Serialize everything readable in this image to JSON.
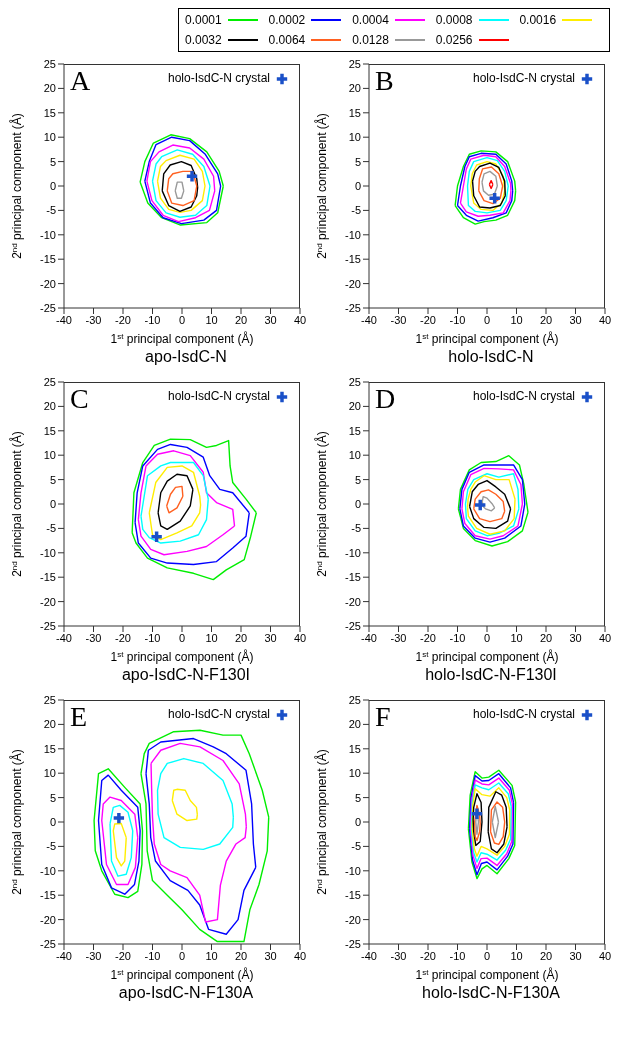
{
  "chart_data": [
    {
      "type": "line",
      "title": "apo-IsdC-N",
      "annotations": [
        "A"
      ],
      "xlabel": "1$^{st}$ principal component (Å)",
      "ylabel": "2$^{nd}$ principal component (Å)",
      "xlim": [
        -40,
        40
      ],
      "xticks": [
        -40,
        -30,
        -20,
        -10,
        0,
        10,
        20,
        30,
        40
      ],
      "ylim": [
        -25,
        25
      ],
      "yticks": [
        -25,
        -20,
        -15,
        -10,
        -5,
        0,
        5,
        10,
        15,
        20,
        25
      ],
      "legend": "top right",
      "series": [
        {
          "color": "#00ee00",
          "x": [
            -14.2,
            -12.6,
            -9.7,
            -3.8,
            2.6,
            8.4,
            12.6,
            14,
            null,
            -14.2,
            -11.6,
            -6.9,
            -0.5,
            8.4,
            12.1,
            14
          ],
          "values": [
            0.8,
            5,
            8.8,
            10.5,
            9.7,
            7,
            3,
            0,
            null,
            0.8,
            -3.5,
            -6.5,
            -8,
            -7.5,
            -5.5,
            0
          ]
        },
        {
          "color": "#0000ff",
          "x": [
            -12.6,
            -11.1,
            -8.8,
            -3.5,
            2.6,
            7.9,
            12.1,
            13.1,
            null,
            -12.6,
            -10.7,
            -6.4,
            -0.2,
            7.4,
            11.7,
            13.1
          ],
          "values": [
            1,
            5,
            8.5,
            10,
            9.3,
            6.5,
            2.5,
            0,
            null,
            1,
            -3.5,
            -6.5,
            -7.7,
            -7,
            -5,
            0
          ]
        },
        {
          "color": "#ff00ff",
          "x": [
            -11.9,
            -10.7,
            -7.8,
            -3.1,
            2.6,
            7.4,
            10.7,
            11.1,
            null,
            -11.9,
            -10.2,
            -6.4,
            -1.2,
            4.6,
            9.3,
            11.1
          ],
          "values": [
            1,
            5,
            7,
            8.4,
            7.8,
            5.5,
            2,
            -1,
            null,
            1,
            -3,
            -6,
            -7.3,
            -6.5,
            -5,
            -1
          ]
        },
        {
          "color": "#00ffff",
          "x": [
            -10,
            -8.8,
            -6.9,
            -1.6,
            3.6,
            7.4,
            9.5,
            null,
            -10,
            -8.8,
            -5.4,
            -0.7,
            4.6,
            8.4,
            9.5
          ],
          "values": [
            1,
            4.5,
            6,
            7.4,
            6.5,
            4,
            0,
            null,
            1,
            -3,
            -5.5,
            -6.4,
            -6,
            -4,
            0
          ]
        },
        {
          "color": "#ffee00",
          "x": [
            -8.3,
            -7.3,
            -5.4,
            -0.7,
            4.1,
            6.9,
            7.8,
            null,
            -8.3,
            -7.3,
            -4.5,
            -0.7,
            3.1,
            6.9,
            7.8
          ],
          "values": [
            1,
            4,
            5.2,
            6.3,
            5.5,
            3,
            0,
            null,
            1,
            -2.5,
            -4.8,
            -5.4,
            -5,
            -3,
            0
          ]
        },
        {
          "color": "#000000",
          "x": [
            -6.7,
            -6.2,
            -4,
            -0.2,
            3.1,
            5,
            5.3,
            null,
            -6.7,
            -4.5,
            -0.7,
            3.1,
            5,
            5.3
          ],
          "values": [
            -1,
            2.5,
            4.3,
            5,
            4.2,
            1.5,
            -0.3,
            null,
            -1,
            -4,
            -5.2,
            -4.3,
            -2,
            -0.3
          ]
        },
        {
          "color": "#ff6020",
          "x": [
            -5,
            -4.5,
            -3.1,
            0.3,
            3.6,
            5,
            null,
            -5,
            -3.5,
            0.3,
            4.1,
            5
          ],
          "values": [
            -1,
            1.5,
            2.5,
            3,
            3,
            0,
            null,
            -1,
            -3.5,
            -4,
            -3,
            0
          ]
        },
        {
          "color": "#999999",
          "x": [
            -2.3,
            -1.6,
            0,
            0.6,
            null,
            -2.3,
            -1.6,
            -0.2,
            0.6
          ],
          "values": [
            -1,
            0.8,
            0.8,
            -1,
            null,
            -1,
            -2.5,
            -2.5,
            -1
          ]
        },
        {
          "type": "scatter",
          "name": "holo-IsdC-N crystal",
          "marker": "cross",
          "color": "#1a50c8",
          "x": [
            3.4
          ],
          "values": [
            2
          ]
        }
      ]
    },
    {
      "type": "line",
      "title": "holo-IsdC-N",
      "annotations": [
        "B"
      ],
      "xlabel": "1$^{st}$ principal component (Å)",
      "ylabel": "2$^{nd}$ principal component (Å)",
      "xlim": [
        -40,
        40
      ],
      "xticks": [
        -40,
        -30,
        -20,
        -10,
        0,
        10,
        20,
        30,
        40
      ],
      "ylim": [
        -25,
        25
      ],
      "yticks": [
        -25,
        -20,
        -15,
        -10,
        -5,
        0,
        5,
        10,
        15,
        20,
        25
      ],
      "legend": "top left",
      "series": [
        {
          "name": "0.0001",
          "color": "#00ee00",
          "x": [
            -10.8,
            -10,
            -8,
            -6,
            -2,
            3,
            7,
            9.4,
            9.7,
            null,
            -10.8,
            -8,
            -4,
            -1,
            3,
            7,
            9.4,
            9.7
          ],
          "values": [
            -4,
            0,
            4,
            6.5,
            7.2,
            7,
            5,
            1,
            -1,
            null,
            -4,
            -6.5,
            -7.8,
            -7.3,
            -7,
            -6,
            -3,
            -1
          ]
        },
        {
          "name": "0.0002",
          "color": "#0000ff",
          "x": [
            -10,
            -9,
            -7.5,
            -6,
            -2,
            3,
            6.5,
            8.4,
            8.7,
            null,
            -10,
            -7,
            -3,
            2,
            6.5,
            8.4,
            8.7
          ],
          "values": [
            -4,
            0,
            4,
            6,
            6.7,
            6.5,
            4.5,
            1,
            -1,
            null,
            -4,
            -6,
            -7.2,
            -6.5,
            -5.5,
            -3,
            -1
          ]
        },
        {
          "name": "0.0004",
          "color": "#ff00ff",
          "x": [
            -9,
            -8,
            -7,
            -5.5,
            -1,
            3,
            6,
            8,
            8.1,
            null,
            -9,
            -7,
            -3,
            1,
            5.5,
            7.8,
            8.1
          ],
          "values": [
            -3.5,
            0,
            3.5,
            5.5,
            6.3,
            6,
            4,
            0.5,
            -1,
            null,
            -3.5,
            -5.3,
            -6.2,
            -6,
            -5.5,
            -3,
            -1
          ]
        },
        {
          "name": "0.0008",
          "color": "#00ffff",
          "x": [
            -6.6,
            -6,
            -4.5,
            0,
            3.5,
            6,
            7.2,
            null,
            -6.6,
            -6.3,
            -4,
            0,
            4.5,
            6.5,
            7.2
          ],
          "values": [
            0,
            3,
            5,
            5.8,
            5.2,
            3,
            0,
            null,
            0,
            -4,
            -5.2,
            -5.5,
            -5,
            -3,
            0
          ]
        },
        {
          "name": "0.0016",
          "color": "#ffee00",
          "x": [
            -5.5,
            -5,
            -3.5,
            0,
            3,
            5.5,
            6,
            null,
            -5.5,
            -4.5,
            -2,
            2,
            5,
            6
          ],
          "values": [
            0,
            2.5,
            4.3,
            5,
            4.5,
            2,
            -1,
            null,
            0,
            -3.5,
            -4.8,
            -5,
            -3.5,
            -1
          ]
        },
        {
          "name": "0.0032",
          "color": "#000000",
          "x": [
            -4.9,
            -4,
            -2.5,
            1,
            4,
            6,
            6.2,
            null,
            -4.9,
            -4.5,
            -2.5,
            1,
            4.5,
            6.2
          ],
          "values": [
            1,
            3,
            4,
            4.7,
            3.8,
            1,
            -2,
            null,
            1,
            -2,
            -4.3,
            -4.5,
            -4,
            -2
          ]
        },
        {
          "name": "0.0064",
          "color": "#ff6020",
          "x": [
            -2.8,
            -2.6,
            -1.5,
            1.5,
            4,
            5.3,
            null,
            -2.8,
            -1,
            2,
            4.5,
            5.3
          ],
          "values": [
            -1,
            1.5,
            3.5,
            3.9,
            2.5,
            0,
            null,
            -1,
            -3,
            -3.6,
            -2.5,
            0
          ]
        },
        {
          "name": "0.0128",
          "color": "#999999",
          "x": [
            -1.7,
            -1,
            1,
            3,
            3.5,
            null,
            -1.7,
            -1.2,
            0.5,
            2.5,
            3.5
          ],
          "values": [
            0.8,
            2.5,
            3,
            2,
            0,
            null,
            0.8,
            -1,
            -1.9,
            -1.7,
            0
          ]
        },
        {
          "name": "0.0256",
          "color": "#ff0000",
          "x": [
            0.8,
            1.4,
            2,
            null,
            0.8,
            1.4,
            2
          ],
          "values": [
            0.3,
            1.1,
            0.3,
            null,
            0.3,
            -0.5,
            0.3
          ]
        },
        {
          "type": "scatter",
          "name": "holo-IsdC-N crystal",
          "marker": "cross",
          "color": "#1a50c8",
          "x": [
            2.6
          ],
          "values": [
            -2.5
          ]
        }
      ]
    },
    {
      "type": "line",
      "title": "apo-IsdC-N-F130I",
      "annotations": [
        "C"
      ],
      "xlabel": "1$^{st}$ principal component (Å)",
      "ylabel": "2$^{nd}$ principal component (Å)",
      "xlim": [
        -40,
        40
      ],
      "xticks": [
        -40,
        -30,
        -20,
        -10,
        0,
        10,
        20,
        30,
        40
      ],
      "ylim": [
        -25,
        25
      ],
      "yticks": [
        -25,
        -20,
        -15,
        -10,
        -5,
        0,
        5,
        10,
        15,
        20,
        25
      ],
      "legend": "top right",
      "series": [
        {
          "color": "#00ee00",
          "x": [
            -16.9,
            -16.3,
            -13.3,
            -9.4,
            -3.9,
            2.8,
            8.3,
            11.7,
            15.8,
            16.3,
            17.2,
            21.7,
            25.2,
            null,
            -16.9,
            -15.6,
            -11.7,
            -5,
            3.9,
            10.6,
            15,
            21.1,
            23.3,
            25.2
          ],
          "values": [
            -5.9,
            2.3,
            8.5,
            12,
            13.3,
            13.2,
            11.6,
            12,
            13,
            7.8,
            4.4,
            1,
            -1.8,
            null,
            -5.9,
            -8,
            -11.1,
            -13.1,
            -14.2,
            -15.5,
            -13.5,
            -11.4,
            -6.6,
            -1.8
          ]
        },
        {
          "color": "#0000ff",
          "x": [
            -15.9,
            -15.2,
            -13.3,
            -8.3,
            -3.9,
            1.7,
            7.2,
            9.4,
            12.8,
            17.2,
            22.8,
            null,
            -15.9,
            -14.8,
            -10.6,
            -5,
            3.9,
            11.7,
            17.2,
            21.7,
            22.8
          ],
          "values": [
            -3.8,
            2.3,
            7.8,
            11.2,
            12.2,
            11.6,
            9.6,
            5.8,
            3,
            2.3,
            -1.8,
            null,
            -3.8,
            -8,
            -11.1,
            -12.1,
            -12.4,
            -11.8,
            -9,
            -6.6,
            -1.8
          ]
        },
        {
          "color": "#ff00ff",
          "x": [
            -14.8,
            -13.9,
            -12.2,
            -8.3,
            -2.8,
            2.8,
            7.2,
            8.3,
            11.7,
            17.2,
            17.8,
            null,
            -14.8,
            -13.9,
            -10.6,
            -6.1,
            1.7,
            8.3,
            13.9,
            17.8
          ],
          "values": [
            -3.2,
            2.3,
            7.8,
            10.2,
            10.9,
            9.9,
            6.5,
            2.3,
            0.3,
            -1.1,
            -4.5,
            null,
            -3.2,
            -6.6,
            -9.3,
            -10.4,
            -9.7,
            -8.7,
            -6.3,
            -4.5
          ]
        },
        {
          "color": "#00ffff",
          "x": [
            -13.9,
            -11.7,
            -7.2,
            -3.9,
            3.9,
            7.2,
            8.9,
            null,
            -13.9,
            -13.3,
            -11.1,
            -7.2,
            -0.6,
            5.6,
            8.3,
            8.9
          ],
          "values": [
            -2.5,
            5.8,
            7.8,
            8.5,
            8.5,
            5.8,
            1,
            null,
            -2.5,
            -5.2,
            -6.9,
            -8,
            -7.6,
            -6.3,
            -3.2,
            1
          ]
        },
        {
          "color": "#ffee00",
          "x": [
            -11.1,
            -8.9,
            -5,
            0,
            3.9,
            6,
            6.3,
            null,
            -11.1,
            -10,
            -7.2,
            -1.7,
            3.3,
            6,
            6.3
          ],
          "values": [
            -1.8,
            4.4,
            7.5,
            7.8,
            6.5,
            1.6,
            -0.2,
            null,
            -1.8,
            -6.3,
            -7.3,
            -5.9,
            -4.5,
            -1.8,
            -0.2
          ]
        },
        {
          "color": "#000000",
          "x": [
            -8.1,
            -7.2,
            -5,
            -1.7,
            1.7,
            3.7,
            null,
            -8.1,
            -7.2,
            -5,
            -0.6,
            2.8,
            3.7
          ],
          "values": [
            -1.8,
            2.3,
            4.7,
            6.1,
            5.8,
            3,
            null,
            -1.8,
            -4.5,
            -5.2,
            -3.5,
            -0.4,
            3
          ]
        },
        {
          "color": "#ff6020",
          "x": [
            -5.2,
            -3.9,
            -2.2,
            0,
            0.3,
            null,
            -5.2,
            -4.4,
            -1.7,
            0.3
          ],
          "values": [
            -0.4,
            2,
            3.4,
            3.6,
            1.6,
            null,
            -0.4,
            -1.8,
            -0.8,
            1.6
          ]
        },
        {
          "type": "scatter",
          "name": "holo-IsdC-N crystal",
          "marker": "cross",
          "color": "#1a50c8",
          "x": [
            -8.6
          ],
          "values": [
            -6.7
          ]
        }
      ]
    },
    {
      "type": "line",
      "title": "holo-IsdC-N-F130I",
      "annotations": [
        "D"
      ],
      "xlabel": "1$^{st}$ principal component (Å)",
      "ylabel": "2$^{nd}$ principal component (Å)",
      "xlim": [
        -40,
        40
      ],
      "xticks": [
        -40,
        -30,
        -20,
        -10,
        0,
        10,
        20,
        30,
        40
      ],
      "ylim": [
        -25,
        25
      ],
      "yticks": [
        -25,
        -20,
        -15,
        -10,
        -5,
        0,
        5,
        10,
        15,
        20,
        25
      ],
      "legend": "top right",
      "series": [
        {
          "color": "#00ee00",
          "x": [
            -9.7,
            -9,
            -6,
            -2,
            3,
            7.4,
            11,
            12.5,
            13.9,
            null,
            -9.7,
            -8,
            -4,
            1.7,
            7,
            12,
            13.9
          ],
          "values": [
            -1,
            3,
            7,
            8.5,
            8.7,
            9.9,
            8,
            4,
            -1.7,
            null,
            -1,
            -5,
            -7.5,
            -8.6,
            -7.7,
            -5.5,
            -1.7
          ]
        },
        {
          "color": "#0000ff",
          "x": [
            -9.2,
            -8.5,
            -6,
            -1,
            4,
            9,
            12,
            12.8,
            null,
            -9.2,
            -8,
            -4,
            1,
            6,
            11.5,
            12.8
          ],
          "values": [
            -1,
            3,
            6.5,
            8,
            8,
            8,
            5,
            0,
            null,
            -1,
            -4.5,
            -7,
            -7.8,
            -7,
            -4.5,
            0
          ]
        },
        {
          "color": "#ff00ff",
          "x": [
            -8.5,
            -8,
            -5.5,
            -1,
            4,
            9,
            11.5,
            12,
            null,
            -8.5,
            -7.5,
            -4,
            1,
            5.5,
            10.5,
            12
          ],
          "values": [
            -1,
            2.5,
            6,
            7.3,
            7.2,
            7,
            4,
            0,
            null,
            -1,
            -4,
            -6.5,
            -7.2,
            -6.5,
            -4.5,
            0
          ]
        },
        {
          "color": "#00ffff",
          "x": [
            -7.3,
            -6.5,
            -4.5,
            0,
            4,
            9,
            10.5,
            10.8,
            null,
            -7.3,
            -7,
            -4,
            0,
            4,
            9,
            10.8
          ],
          "values": [
            0,
            3,
            5,
            6.2,
            5.5,
            6.2,
            3,
            -1,
            null,
            0,
            -3,
            -5.5,
            -6.5,
            -6,
            -4.5,
            -1
          ]
        },
        {
          "color": "#ffee00",
          "x": [
            -6.6,
            -6.4,
            -5.5,
            -4,
            -1,
            3,
            7.5,
            9.5,
            null,
            -6.6,
            -6.3,
            -3.5,
            1,
            6,
            9.2,
            9.5
          ],
          "values": [
            -0.7,
            1,
            3,
            4.5,
            5.8,
            5,
            5,
            1,
            null,
            -0.7,
            -2.5,
            -5,
            -6.2,
            -5.5,
            -3,
            1
          ]
        },
        {
          "color": "#000000",
          "x": [
            -5.9,
            -5,
            -3,
            0,
            3,
            6,
            8,
            null,
            -5.9,
            -4.5,
            -1,
            3,
            7,
            8
          ],
          "values": [
            -0.5,
            2.5,
            4,
            4.8,
            3.5,
            2,
            -1,
            null,
            -0.5,
            -3,
            -4.8,
            -5,
            -3.5,
            -1
          ]
        },
        {
          "color": "#ff6020",
          "x": [
            -4.5,
            -4,
            -2,
            0.5,
            3,
            5.5,
            6,
            null,
            -4.5,
            -2.5,
            1,
            5,
            6
          ],
          "values": [
            -1,
            1,
            2.5,
            2.9,
            2,
            0.5,
            -1.5,
            null,
            -1,
            -3,
            -3.6,
            -3,
            -1.5
          ]
        },
        {
          "color": "#999999",
          "x": [
            -1.6,
            -1.3,
            0,
            1.8,
            2.6,
            null,
            -1.6,
            -1.3,
            -0.5,
            1.5,
            2.6
          ],
          "values": [
            0.5,
            1.5,
            1.2,
            0,
            -0.8,
            null,
            0.5,
            -0.5,
            -1,
            -1.4,
            -0.8
          ]
        },
        {
          "type": "scatter",
          "name": "holo-IsdC-N crystal",
          "marker": "cross",
          "color": "#1a50c8",
          "x": [
            -2.3
          ],
          "values": [
            -0.2
          ]
        }
      ]
    },
    {
      "type": "line",
      "title": "apo-IsdC-N-F130A",
      "annotations": [
        "E"
      ],
      "xlabel": "1$^{st}$ principal component (Å)",
      "ylabel": "2$^{nd}$ principal component (Å)",
      "xlim": [
        -40,
        40
      ],
      "xticks": [
        -40,
        -30,
        -20,
        -10,
        0,
        10,
        20,
        30,
        40
      ],
      "ylim": [
        -25,
        25
      ],
      "yticks": [
        -25,
        -20,
        -15,
        -10,
        -5,
        0,
        5,
        10,
        15,
        20,
        25
      ],
      "legend": "top right",
      "series": [
        {
          "color": "#00ee00",
          "x": [
            -29.8,
            -28.3,
            -25,
            -19.4,
            -14.2,
            -13.4,
            null,
            -29.8,
            -29.4,
            -27.2,
            -22.8,
            -18.3,
            -15,
            -13.6,
            -13.4,
            null,
            -13.9,
            -12.8,
            -11.1,
            -2.8,
            6.1,
            13.9,
            20,
            22.8,
            27.2,
            29.4,
            null,
            -13.9,
            -12.2,
            -11.8,
            -10,
            -5,
            0,
            6,
            12,
            21,
            23,
            26.1,
            28.9,
            29.4
          ],
          "values": [
            0.3,
            9.9,
            10.9,
            7.1,
            3.7,
            -1.8,
            null,
            0.3,
            -5.9,
            -10,
            -14.8,
            -15.5,
            -14.2,
            -8.7,
            -1.8,
            null,
            9.9,
            14,
            16.1,
            18.5,
            18.8,
            17.8,
            17.8,
            14,
            6.5,
            1,
            null,
            9.9,
            3.7,
            -5.9,
            -12,
            -15,
            -18,
            -22,
            -24.5,
            -24.5,
            -18,
            -12.8,
            -5.9,
            1
          ]
        },
        {
          "color": "#0000ff",
          "x": [
            -28.3,
            -27.2,
            -25,
            -20.6,
            -15,
            -14.2,
            null,
            -28.3,
            -27.2,
            -23.9,
            -19.4,
            -16.1,
            -14.6,
            -14.2,
            null,
            -12.2,
            -11.4,
            -7.2,
            3.9,
            10.6,
            15,
            21.7,
            23.6,
            24.2,
            25,
            null,
            -12.2,
            -11.1,
            -10.6,
            -9,
            -4,
            2,
            6,
            9,
            15,
            19,
            21,
            25
          ],
          "values": [
            0.3,
            8.5,
            9.6,
            6.5,
            3,
            -1.8,
            null,
            0.3,
            -8.7,
            -13.5,
            -14.8,
            -12.8,
            -8,
            -1.8,
            null,
            9.9,
            14.7,
            16.4,
            17.1,
            15.4,
            14,
            10.6,
            3.7,
            -4.5,
            -9.3,
            null,
            9.9,
            3.7,
            -3.2,
            -8,
            -12,
            -14,
            -17,
            -22,
            -23,
            -20,
            -14,
            -9.3
          ]
        },
        {
          "color": "#ff00ff",
          "x": [
            -27.2,
            -26.7,
            -24.4,
            -20.6,
            -16,
            -15,
            null,
            -27.2,
            -25.6,
            -22.2,
            -18.3,
            -15.8,
            -15,
            null,
            -10.5,
            -7.2,
            -0.6,
            6.1,
            13.9,
            19.4,
            21.5,
            21.8,
            null,
            -10.5,
            -10.3,
            -10,
            -9.4,
            -7.2,
            -4,
            1.7,
            6,
            8,
            12,
            13,
            15,
            18.3,
            21.4,
            21.8
          ],
          "values": [
            0.3,
            3.7,
            5.1,
            4.4,
            1.6,
            -3.2,
            null,
            0.3,
            -8.7,
            -12.8,
            -12.8,
            -9.3,
            -3.2,
            null,
            12,
            14.7,
            16.1,
            15.4,
            12.6,
            7.8,
            1.6,
            -1,
            null,
            12,
            7,
            1,
            -4.5,
            -8.7,
            -10,
            -11.4,
            -15,
            -20.5,
            -20,
            -13,
            -8,
            -4.5,
            -3.2,
            -1
          ]
        },
        {
          "color": "#00ffff",
          "x": [
            -24.4,
            -23.3,
            -21.1,
            -18.3,
            -16.7,
            null,
            -24.4,
            -23.9,
            -21.7,
            -18.9,
            -17.2,
            -16.7,
            null,
            -8.3,
            -7.2,
            -5,
            0.6,
            7.2,
            13.9,
            17,
            17.4,
            null,
            -8.3,
            -8.1,
            -6.1,
            -0.6,
            7.2,
            12.8,
            17.2,
            17.4
          ],
          "values": [
            -0.4,
            3,
            3.4,
            2,
            -1.8,
            null,
            -0.4,
            -8,
            -11.1,
            -10.7,
            -7.3,
            -1.8,
            null,
            6.5,
            9.9,
            12,
            13,
            12,
            8.5,
            3.7,
            1,
            null,
            6.5,
            1.6,
            -3.2,
            -5.2,
            -5.6,
            -4.5,
            -1.1,
            1
          ]
        },
        {
          "color": "#ffee00",
          "x": [
            -23.3,
            -22.8,
            -20.6,
            -18.9,
            null,
            -23.3,
            -22.2,
            -20.6,
            -19.4,
            -18.9,
            null,
            -3.3,
            -2.8,
            -1.7,
            1.1,
            2.8,
            4.9,
            5.2,
            null,
            -3.3,
            -1.7,
            1.7,
            5,
            5.2
          ],
          "values": [
            -1.8,
            -0.4,
            -0.3,
            -3.2,
            null,
            -1.8,
            -7.3,
            -9,
            -8,
            -3.2,
            null,
            4.4,
            6.5,
            6.7,
            6.5,
            4.4,
            3,
            1.5,
            null,
            4.4,
            1.6,
            0.3,
            0.6,
            1.5
          ]
        },
        {
          "type": "scatter",
          "name": "holo-IsdC-N crystal",
          "marker": "cross",
          "color": "#1a50c8",
          "x": [
            -21.4
          ],
          "values": [
            0.8
          ]
        }
      ]
    },
    {
      "type": "line",
      "title": "holo-IsdC-N-F130A",
      "annotations": [
        "F"
      ],
      "xlabel": "1$^{st}$ principal component (Å)",
      "ylabel": "2$^{nd}$ principal component (Å)",
      "xlim": [
        -40,
        40
      ],
      "xticks": [
        -40,
        -30,
        -20,
        -10,
        0,
        10,
        20,
        30,
        40
      ],
      "ylim": [
        -25,
        25
      ],
      "yticks": [
        -25,
        -20,
        -15,
        -10,
        -5,
        0,
        5,
        10,
        15,
        20,
        25
      ],
      "legend": "top right",
      "series": [
        {
          "color": "#00ee00",
          "x": [
            -6.3,
            -5.7,
            -4,
            -1.7,
            0.6,
            4,
            8.5,
            9.7,
            null,
            -6.3,
            -5.1,
            -3.4,
            -1.7,
            0,
            3.4,
            7.4,
            9.4,
            9.7
          ],
          "values": [
            -1.4,
            5.5,
            10.3,
            9,
            9.2,
            10.6,
            7.5,
            4.1,
            null,
            -1.4,
            -8.2,
            -11.6,
            -9.6,
            -8.9,
            -10.6,
            -7.5,
            -4.8,
            4.1
          ]
        },
        {
          "color": "#0000ff",
          "x": [
            -5.9,
            -5.4,
            -4,
            -1.7,
            0.6,
            4,
            8,
            9,
            null,
            -5.9,
            -4.9,
            -3.4,
            -1.9,
            0,
            3.4,
            7,
            8.8,
            9
          ],
          "values": [
            -1.4,
            5,
            9.5,
            8.4,
            8.5,
            9.9,
            7,
            4,
            null,
            -1.4,
            -7.8,
            -10.8,
            -8.5,
            -8.2,
            -9.8,
            -7,
            -4.5,
            4
          ]
        },
        {
          "color": "#ff00ff",
          "x": [
            -5.6,
            -5.2,
            -4,
            -1.7,
            0.6,
            4,
            7.6,
            8.6,
            null,
            -5.6,
            -4.7,
            -3.4,
            -2,
            0,
            3.4,
            6.7,
            8.4,
            8.6
          ],
          "values": [
            -1.4,
            4.5,
            8.6,
            7.8,
            7.6,
            9,
            6.5,
            3.7,
            null,
            -1.4,
            -7,
            -9.5,
            -7.5,
            -7.4,
            -8.9,
            -6.5,
            -4,
            3.7
          ]
        },
        {
          "color": "#00ffff",
          "x": [
            -5.3,
            -5,
            -4,
            -1.7,
            0.6,
            4,
            7.2,
            8.2,
            null,
            -5.3,
            -4.5,
            -3.4,
            -2,
            0,
            3.4,
            6.3,
            8,
            8.2
          ],
          "values": [
            -1.4,
            4,
            7.6,
            7,
            6.6,
            8,
            5.8,
            3.2,
            null,
            -1.4,
            -6.3,
            -8.2,
            -6.3,
            -6.6,
            -7.8,
            -5.8,
            -3.5,
            3.2
          ]
        },
        {
          "color": "#ffee00",
          "x": [
            -5,
            -4.8,
            -4,
            -1.7,
            1,
            4,
            6.7,
            7.7,
            null,
            -5,
            -4.3,
            -3.4,
            -2,
            0,
            3.4,
            6,
            7.6,
            7.7
          ],
          "values": [
            -1.4,
            3.5,
            6.8,
            5.6,
            5.3,
            7,
            5,
            2.5,
            null,
            -1.4,
            -5.5,
            -7,
            -5,
            -5.5,
            -6.8,
            -5,
            -2.5,
            2.5
          ]
        },
        {
          "color": "#000000",
          "x": [
            -4.7,
            -4.5,
            -3.4,
            -2,
            -1.7,
            null,
            -4.7,
            -4.5,
            -3.8,
            -2.3,
            -1.7,
            null,
            0.4,
            0.6,
            3,
            5,
            6.5,
            6.8,
            null,
            0.4,
            1.5,
            3.4,
            5.7,
            6.8
          ],
          "values": [
            0.5,
            3,
            5.8,
            4,
            0,
            null,
            0.5,
            -2,
            -4.8,
            -4,
            0,
            null,
            -2,
            3,
            6.2,
            5.5,
            3,
            -1,
            null,
            -2,
            -5.5,
            -6.3,
            -4.5,
            -1
          ]
        },
        {
          "color": "#ff6020",
          "x": [
            -4.2,
            -3.4,
            -2.5,
            -2.3,
            null,
            -4.2,
            -4,
            -3.4,
            -2.5,
            -2.3,
            null,
            1.2,
            1.5,
            3.4,
            5.3,
            6,
            null,
            1.2,
            2.5,
            4,
            5.5,
            6
          ],
          "values": [
            0,
            3.4,
            1.5,
            -0.3,
            null,
            0,
            -3,
            -3.8,
            -2,
            -0.3,
            null,
            -2,
            2.5,
            4.1,
            3,
            0,
            null,
            -2,
            -4.3,
            -4.6,
            -3,
            0
          ]
        },
        {
          "color": "#999999",
          "x": [
            -3.8,
            -3.4,
            -2.9,
            null,
            -3.8,
            -3.4,
            -2.9,
            null,
            1.8,
            2.8,
            3.9,
            null,
            1.8,
            2.8,
            3.9
          ],
          "values": [
            0,
            2.5,
            0,
            null,
            0,
            -2.5,
            0,
            null,
            0,
            3.2,
            0,
            null,
            0,
            -3.2,
            0
          ]
        },
        {
          "type": "scatter",
          "name": "holo-IsdC-N crystal",
          "marker": "cross",
          "color": "#1a50c8",
          "x": [
            -3.4
          ],
          "values": [
            1.7
          ]
        }
      ]
    }
  ]
}
